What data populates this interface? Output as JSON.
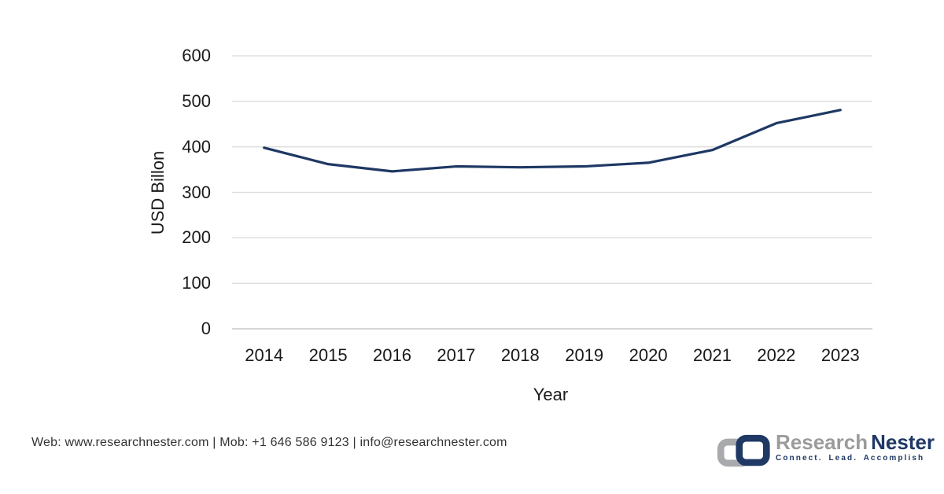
{
  "chart_data": {
    "type": "line",
    "categories": [
      "2014",
      "2015",
      "2016",
      "2017",
      "2018",
      "2019",
      "2020",
      "2021",
      "2022",
      "2023"
    ],
    "values": [
      398,
      362,
      346,
      357,
      355,
      357,
      365,
      393,
      452,
      481
    ],
    "title": "",
    "xlabel": "Year",
    "ylabel": "USD Billon",
    "ylim": [
      0,
      600
    ],
    "yticks": [
      "0",
      "100",
      "200",
      "300",
      "400",
      "500",
      "600"
    ],
    "grid": true,
    "legend": "none",
    "line_color": "#1f3864",
    "grid_color": "#dcdcdc",
    "axis_color": "#c8c8c8"
  },
  "footer": {
    "contact": "Web: www.researchnester.com | Mob: +1 646 586 9123 | info@researchnester.com",
    "logo": {
      "brand_gray": "Research",
      "brand_navy": "Nester",
      "tagline": "Connect. Lead. Accomplish",
      "icon_gray": "#a9aaad",
      "icon_navy": "#1f3864"
    }
  }
}
